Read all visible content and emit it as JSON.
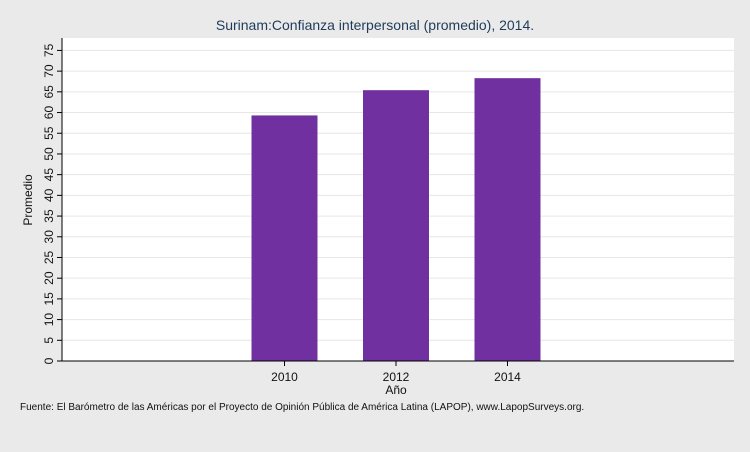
{
  "chart_data": {
    "type": "bar",
    "title": "Surinam:Confianza interpersonal (promedio), 2014.",
    "xlabel": "Año",
    "ylabel": "Promedio",
    "categories": [
      "2010",
      "2012",
      "2014"
    ],
    "values": [
      59.3,
      65.4,
      68.3
    ],
    "ylim": [
      0,
      78
    ],
    "yticks": [
      0,
      5,
      10,
      15,
      20,
      25,
      30,
      35,
      40,
      45,
      50,
      55,
      60,
      65,
      70,
      75
    ],
    "grid": true,
    "bar_color": "#7030a0",
    "source": "Fuente: El Barómetro de las Américas por el Proyecto de Opinión Pública de América Latina (LAPOP), www.LapopSurveys.org."
  }
}
